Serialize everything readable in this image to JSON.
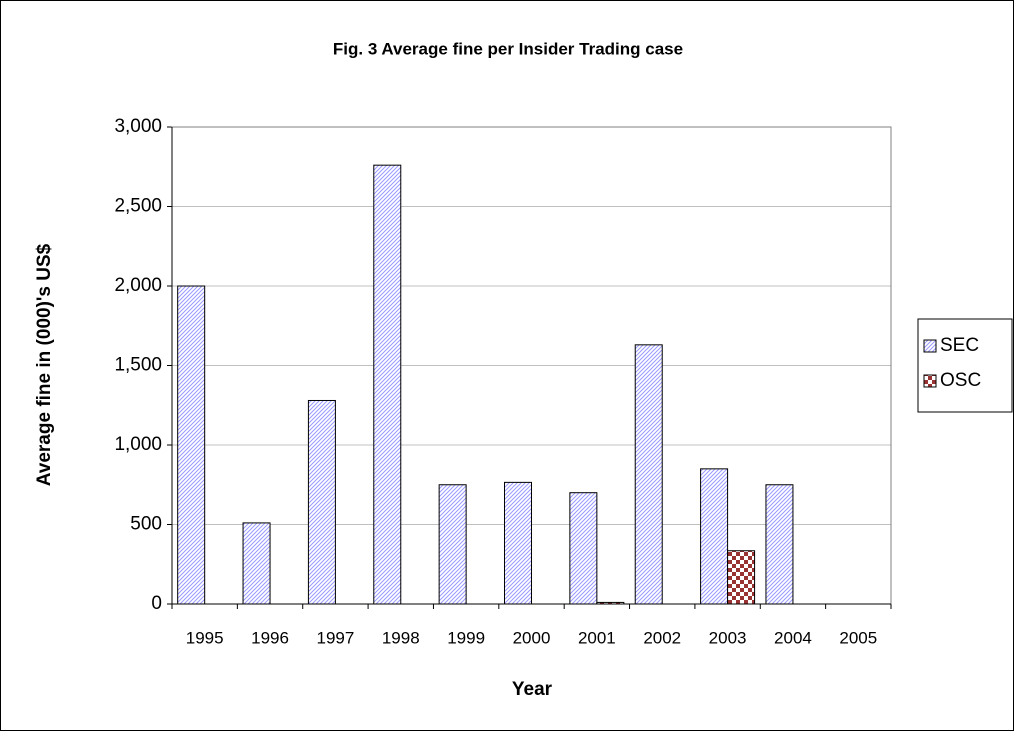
{
  "chart_data": {
    "type": "bar",
    "title": "Fig. 3 Average fine per Insider Trading case",
    "x_label": "Year",
    "y_label": "Average fine in (000)'s US$",
    "categories": [
      "1995",
      "1996",
      "1997",
      "1998",
      "1999",
      "2000",
      "2001",
      "2002",
      "2003",
      "2004",
      "2005"
    ],
    "series": [
      {
        "name": "SEC",
        "color": "#9999ff",
        "values": [
          2000,
          510,
          1280,
          2760,
          750,
          765,
          700,
          1630,
          850,
          750,
          null
        ]
      },
      {
        "name": "OSC",
        "color": "#993333",
        "values": [
          null,
          null,
          null,
          null,
          null,
          null,
          10,
          null,
          335,
          null,
          null
        ]
      }
    ],
    "ylim": [
      0,
      3000
    ],
    "yticks": [
      0,
      500,
      {
        "value": 1000,
        "label": "1,000"
      },
      {
        "value": 1500,
        "label": "1,500"
      },
      {
        "value": 2000,
        "label": "2,000"
      },
      {
        "value": 2500,
        "label": "2,500"
      },
      {
        "value": 3000,
        "label": "3,000"
      }
    ],
    "grid": true,
    "legend": "right"
  }
}
